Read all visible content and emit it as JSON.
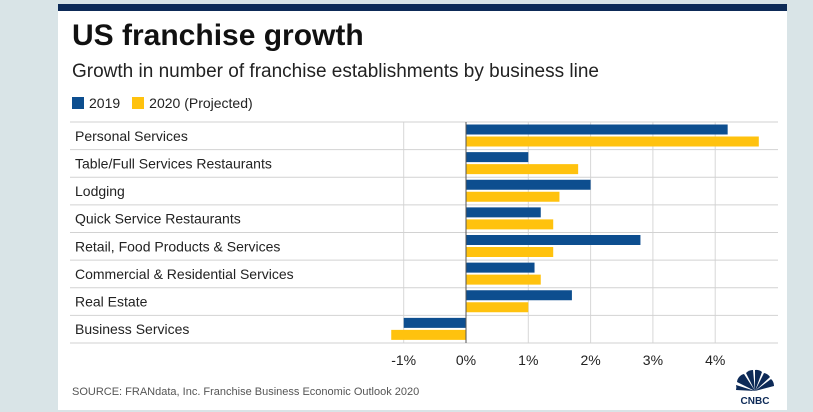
{
  "colors": {
    "series_2019": "#0d4e8f",
    "series_2020": "#ffc20e",
    "topbar": "#0d2a57"
  },
  "chart_data": {
    "type": "bar",
    "orientation": "horizontal",
    "title": "US franchise growth",
    "subtitle": "Growth in number of franchise establishments by business line",
    "categories": [
      "Personal Services",
      "Table/Full Services Restaurants",
      "Lodging",
      "Quick Service Restaurants",
      "Retail, Food Products & Services",
      "Commercial & Residential Services",
      "Real Estate",
      "Business Services"
    ],
    "series": [
      {
        "name": "2019",
        "color": "#0d4e8f",
        "values": [
          4.2,
          1.0,
          2.0,
          1.2,
          2.8,
          1.1,
          1.7,
          -1.0
        ]
      },
      {
        "name": "2020 (Projected)",
        "color": "#ffc20e",
        "values": [
          4.7,
          1.8,
          1.5,
          1.4,
          1.4,
          1.2,
          1.0,
          -1.2
        ]
      }
    ],
    "xticks": [
      -1,
      0,
      1,
      2,
      3,
      4
    ],
    "xtick_labels": [
      "-1%",
      "0%",
      "1%",
      "2%",
      "3%",
      "4%"
    ],
    "xlim": [
      -1.2,
      5.0
    ],
    "xlabel": "",
    "ylabel": "",
    "legend_position": "top-left",
    "grid": "vertical",
    "source": "SOURCE: FRANdata, Inc. Franchise Business Economic Outlook 2020"
  },
  "logo": {
    "label": "CNBC"
  }
}
